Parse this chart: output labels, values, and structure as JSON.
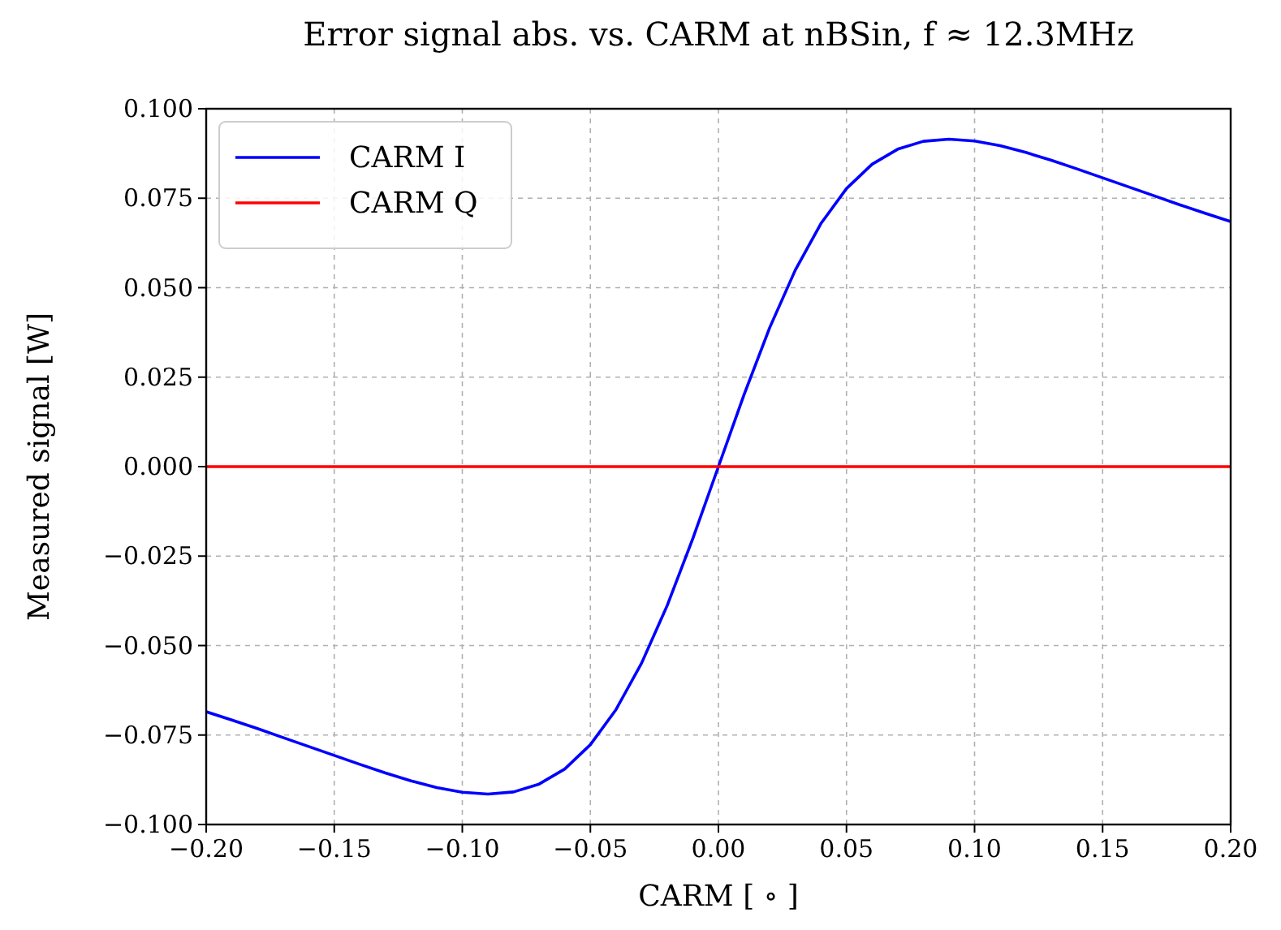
{
  "chart_data": {
    "type": "line",
    "title": "Error signal abs. vs. CARM at nBSin, f ≈ 12.3MHz",
    "xlabel": "CARM [ ∘ ]",
    "ylabel": "Measured signal [W]",
    "x": [
      -0.2,
      -0.19,
      -0.18,
      -0.17,
      -0.16,
      -0.15,
      -0.14,
      -0.13,
      -0.12,
      -0.11,
      -0.1,
      -0.09,
      -0.08,
      -0.07,
      -0.06,
      -0.05,
      -0.04,
      -0.03,
      -0.02,
      -0.01,
      0,
      0.01,
      0.02,
      0.03,
      0.04,
      0.05,
      0.06,
      0.07,
      0.08,
      0.09,
      0.1,
      0.11,
      0.12,
      0.13,
      0.14,
      0.15,
      0.16,
      0.17,
      0.18,
      0.19,
      0.2
    ],
    "series": [
      {
        "name": "CARM I",
        "color": "#0000ff",
        "values": [
          -0.0685,
          -0.0708,
          -0.0732,
          -0.0757,
          -0.0782,
          -0.0807,
          -0.0832,
          -0.0856,
          -0.0878,
          -0.0897,
          -0.091,
          -0.0915,
          -0.0909,
          -0.0887,
          -0.0845,
          -0.0777,
          -0.0679,
          -0.0549,
          -0.0388,
          -0.0201,
          0,
          0.0201,
          0.0388,
          0.0549,
          0.0679,
          0.0777,
          0.0845,
          0.0887,
          0.0909,
          0.0915,
          0.091,
          0.0897,
          0.0878,
          0.0856,
          0.0832,
          0.0807,
          0.0782,
          0.0757,
          0.0732,
          0.0708,
          0.0685
        ]
      },
      {
        "name": "CARM Q",
        "color": "#ff0000",
        "values": [
          0,
          0,
          0,
          0,
          0,
          0,
          0,
          0,
          0,
          0,
          0,
          0,
          0,
          0,
          0,
          0,
          0,
          0,
          0,
          0,
          0,
          0,
          0,
          0,
          0,
          0,
          0,
          0,
          0,
          0,
          0,
          0,
          0,
          0,
          0,
          0,
          0,
          0,
          0,
          0,
          0
        ]
      }
    ],
    "xlim": [
      -0.2,
      0.2
    ],
    "xticks": [
      {
        "value": -0.2,
        "label": "−0.20"
      },
      {
        "value": -0.15,
        "label": "−0.15"
      },
      {
        "value": -0.1,
        "label": "−0.10"
      },
      {
        "value": -0.05,
        "label": "−0.05"
      },
      {
        "value": 0,
        "label": "0.00"
      },
      {
        "value": 0.05,
        "label": "0.05"
      },
      {
        "value": 0.1,
        "label": "0.10"
      },
      {
        "value": 0.15,
        "label": "0.15"
      },
      {
        "value": 0.2,
        "label": "0.20"
      }
    ],
    "ylim": [
      -0.1,
      0.1
    ],
    "yticks": [
      {
        "value": -0.1,
        "label": "−0.100"
      },
      {
        "value": -0.075,
        "label": "−0.075"
      },
      {
        "value": -0.05,
        "label": "−0.050"
      },
      {
        "value": -0.025,
        "label": "−0.025"
      },
      {
        "value": 0,
        "label": "0.000"
      },
      {
        "value": 0.025,
        "label": "0.025"
      },
      {
        "value": 0.05,
        "label": "0.050"
      },
      {
        "value": 0.075,
        "label": "0.075"
      },
      {
        "value": 0.1,
        "label": "0.100"
      }
    ],
    "grid": true,
    "legend": "top left",
    "line_style": "solid"
  }
}
